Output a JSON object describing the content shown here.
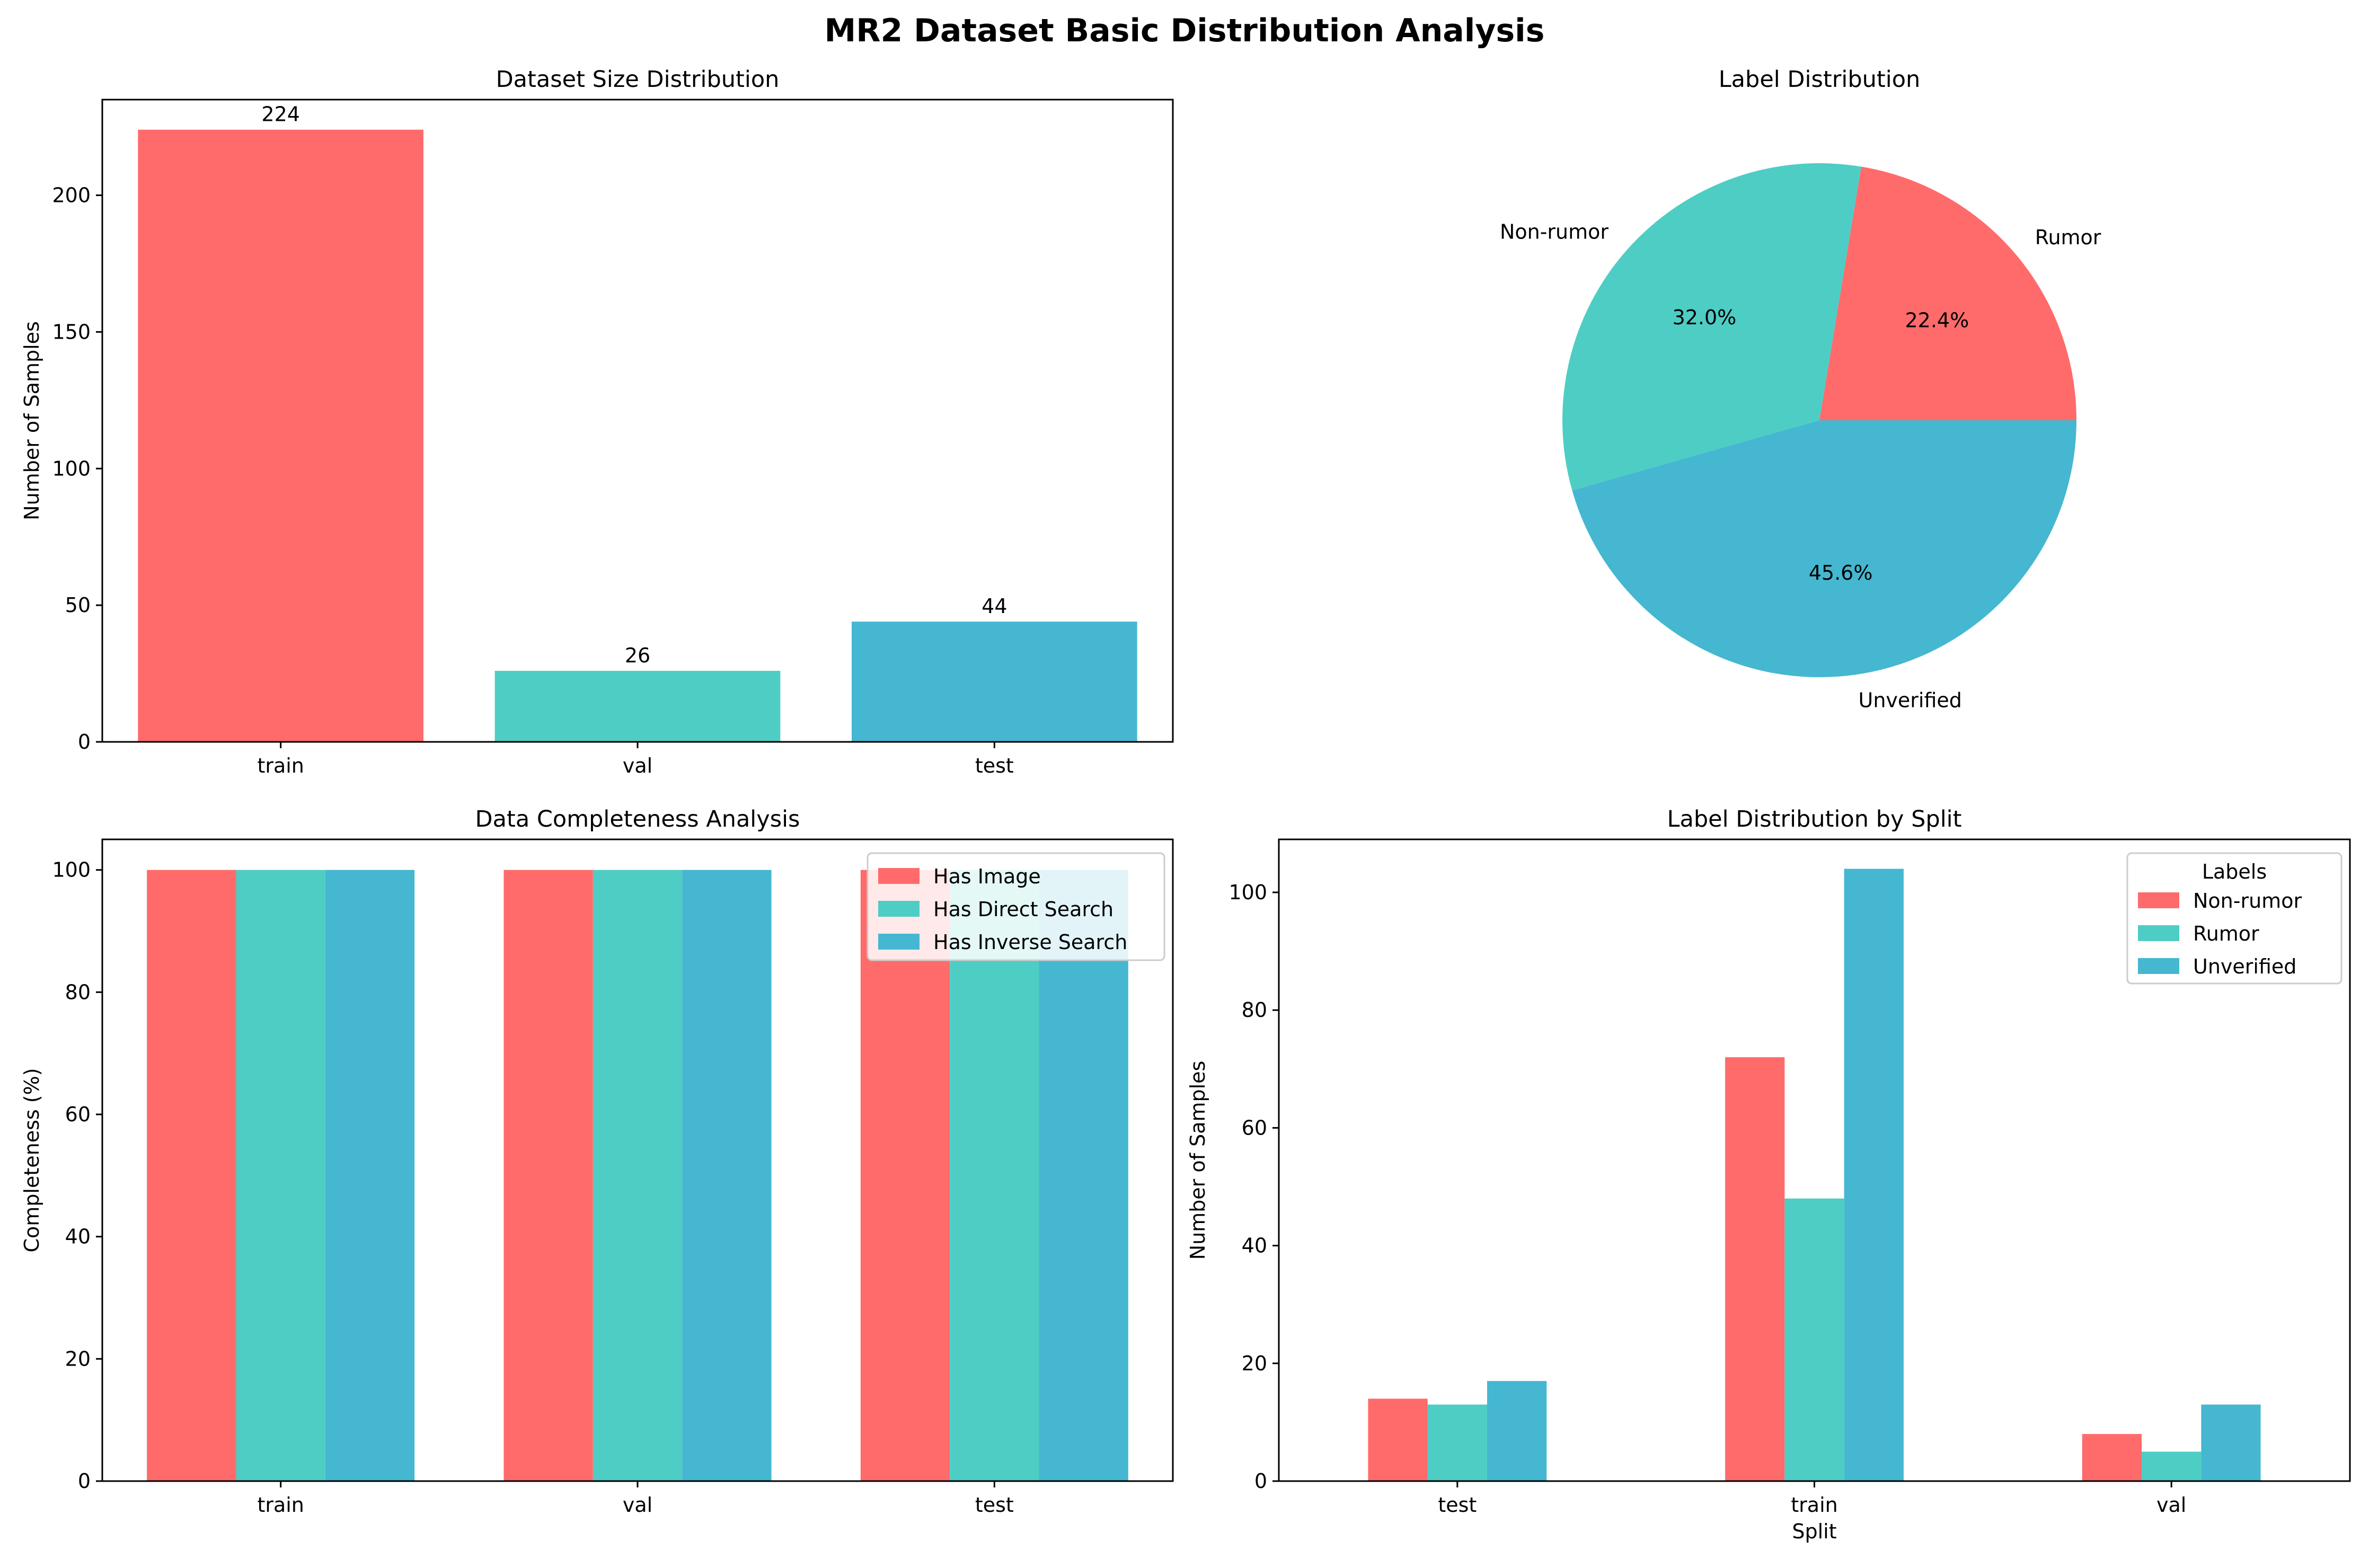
{
  "figure_title": "MR2 Dataset Basic Distribution Analysis",
  "colors": {
    "red": "#ff6b6b",
    "teal": "#4ecdc4",
    "blue": "#45b7d1"
  },
  "chart_data": [
    {
      "id": "size",
      "type": "bar",
      "title": "Dataset Size Distribution",
      "xlabel": "",
      "ylabel": "Number of Samples",
      "categories": [
        "train",
        "val",
        "test"
      ],
      "values": [
        224,
        26,
        44
      ],
      "data_labels": [
        "224",
        "26",
        "44"
      ],
      "colors": [
        "#ff6b6b",
        "#4ecdc4",
        "#45b7d1"
      ],
      "ylim": [
        0,
        235
      ],
      "yticks": [
        0,
        50,
        100,
        150,
        200
      ]
    },
    {
      "id": "labels",
      "type": "pie",
      "title": "Label Distribution",
      "slices": [
        {
          "label": "Rumor",
          "value": 22.4,
          "pct_label": "22.4%",
          "color": "#ff6b6b"
        },
        {
          "label": "Non-rumor",
          "value": 32.0,
          "pct_label": "32.0%",
          "color": "#4ecdc4"
        },
        {
          "label": "Unverified",
          "value": 45.6,
          "pct_label": "45.6%",
          "color": "#45b7d1"
        }
      ]
    },
    {
      "id": "completeness",
      "type": "bar",
      "title": "Data Completeness Analysis",
      "xlabel": "",
      "ylabel": "Completeness (%)",
      "categories": [
        "train",
        "val",
        "test"
      ],
      "series": [
        {
          "name": "Has Image",
          "values": [
            100,
            100,
            100
          ],
          "color": "#ff6b6b"
        },
        {
          "name": "Has Direct Search",
          "values": [
            100,
            100,
            100
          ],
          "color": "#4ecdc4"
        },
        {
          "name": "Has Inverse Search",
          "values": [
            100,
            100,
            100
          ],
          "color": "#45b7d1"
        }
      ],
      "ylim": [
        0,
        105
      ],
      "yticks": [
        0,
        20,
        40,
        60,
        80,
        100
      ],
      "legend": {
        "title": "",
        "placement": "top-right"
      }
    },
    {
      "id": "bysplit",
      "type": "bar",
      "title": "Label Distribution by Split",
      "xlabel": "Split",
      "ylabel": "Number of Samples",
      "categories": [
        "test",
        "train",
        "val"
      ],
      "series": [
        {
          "name": "Non-rumor",
          "values": [
            14,
            72,
            8
          ],
          "color": "#ff6b6b"
        },
        {
          "name": "Rumor",
          "values": [
            13,
            48,
            5
          ],
          "color": "#4ecdc4"
        },
        {
          "name": "Unverified",
          "values": [
            17,
            104,
            13
          ],
          "color": "#45b7d1"
        }
      ],
      "ylim": [
        0,
        109
      ],
      "yticks": [
        0,
        20,
        40,
        60,
        80,
        100
      ],
      "legend": {
        "title": "Labels",
        "placement": "top-right"
      }
    }
  ]
}
